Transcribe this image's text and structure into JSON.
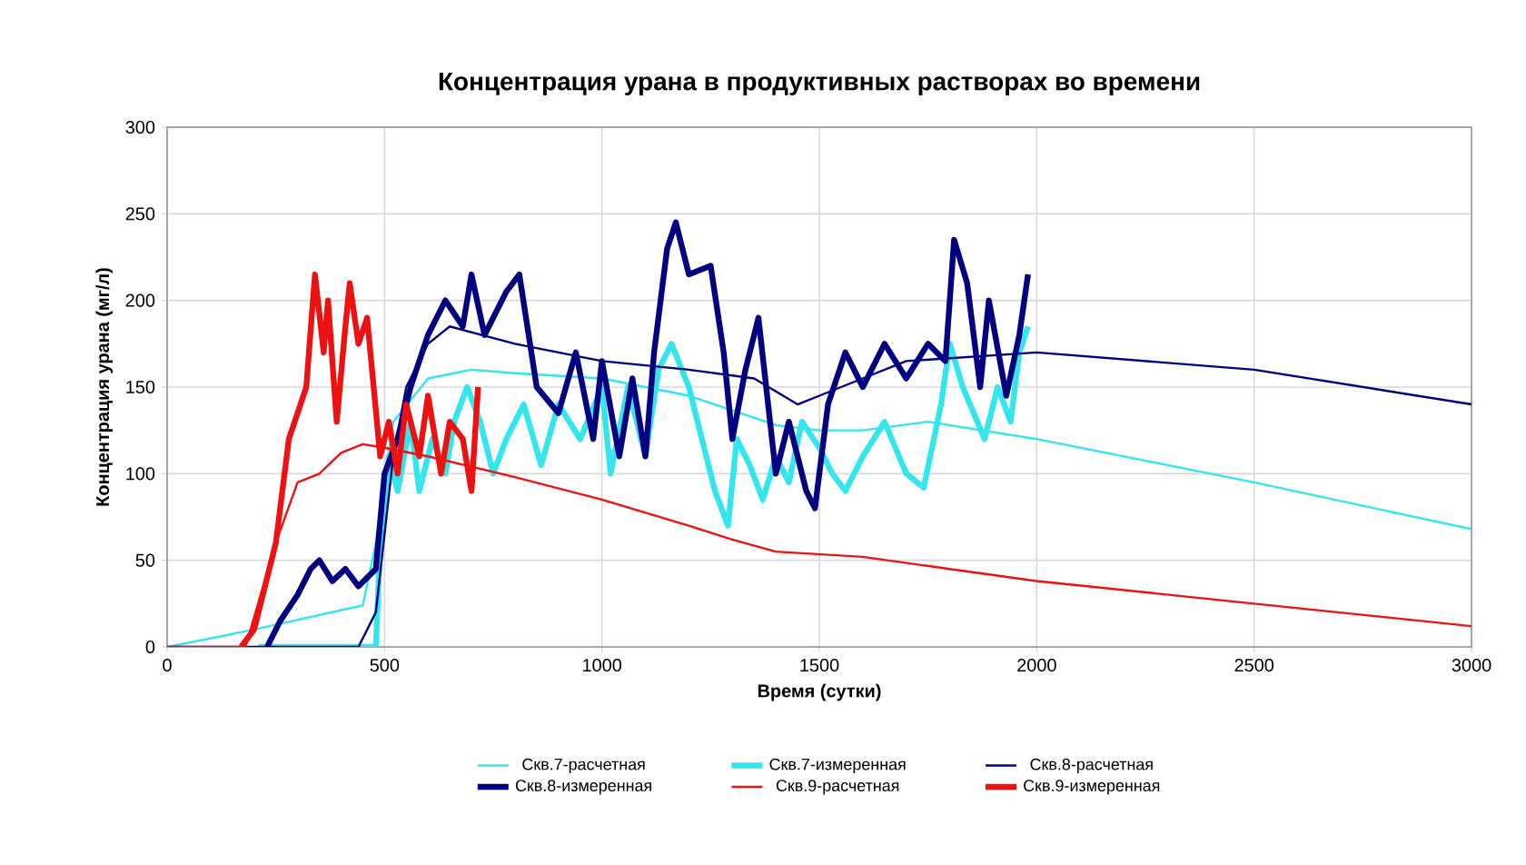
{
  "chart_data": {
    "type": "line",
    "title": "Концентрация урана в продуктивных растворах во времени",
    "xlabel": "Время (сутки)",
    "ylabel": "Концентрация урана (мг/л)",
    "xlim": [
      0,
      3000
    ],
    "ylim": [
      0,
      300
    ],
    "xticks": [
      0,
      500,
      1000,
      1500,
      2000,
      2500,
      3000
    ],
    "yticks": [
      0,
      50,
      100,
      150,
      200,
      250,
      300
    ],
    "grid": true,
    "legend": "bottom",
    "marker": "none",
    "line_style": "solid",
    "series": [
      {
        "name": "Скв.7-расчетная",
        "color": "#33e6ee",
        "x": [
          0,
          200,
          450,
          480,
          520,
          600,
          700,
          800,
          1000,
          1200,
          1400,
          1500,
          1600,
          1750,
          2000,
          2500,
          3000
        ],
        "values": [
          0,
          10,
          24,
          60,
          130,
          155,
          160,
          158,
          155,
          145,
          128,
          125,
          125,
          130,
          120,
          95,
          68
        ]
      },
      {
        "name": "Скв.7-измеренная",
        "color": "#33e6ee",
        "x": [
          210,
          480,
          490,
          510,
          530,
          560,
          580,
          610,
          640,
          660,
          690,
          720,
          750,
          780,
          820,
          860,
          900,
          950,
          1000,
          1020,
          1060,
          1100,
          1130,
          1160,
          1200,
          1230,
          1260,
          1290,
          1310,
          1340,
          1370,
          1400,
          1430,
          1460,
          1500,
          1530,
          1560,
          1600,
          1650,
          1700,
          1740,
          1780,
          1800,
          1830,
          1880,
          1910,
          1940,
          1960,
          1980
        ],
        "values": [
          0,
          0,
          60,
          110,
          90,
          130,
          90,
          120,
          100,
          130,
          150,
          130,
          100,
          120,
          140,
          105,
          140,
          120,
          150,
          100,
          150,
          110,
          160,
          175,
          150,
          120,
          90,
          70,
          120,
          105,
          85,
          110,
          95,
          130,
          115,
          100,
          90,
          110,
          130,
          100,
          92,
          140,
          175,
          150,
          120,
          150,
          130,
          170,
          185
        ]
      },
      {
        "name": "Скв.8-расчетная",
        "color": "#000080",
        "x": [
          0,
          440,
          480,
          520,
          550,
          600,
          650,
          800,
          1000,
          1200,
          1350,
          1450,
          1550,
          1700,
          2000,
          2500,
          3000
        ],
        "values": [
          0,
          0,
          20,
          110,
          150,
          175,
          185,
          175,
          165,
          160,
          155,
          140,
          150,
          165,
          170,
          160,
          140
        ]
      },
      {
        "name": "Скв.8-измеренная",
        "color": "#000080",
        "x": [
          230,
          260,
          300,
          330,
          350,
          380,
          410,
          440,
          480,
          500,
          530,
          560,
          600,
          640,
          680,
          700,
          730,
          780,
          810,
          850,
          900,
          940,
          980,
          1000,
          1040,
          1070,
          1100,
          1120,
          1150,
          1170,
          1200,
          1250,
          1280,
          1300,
          1330,
          1360,
          1400,
          1430,
          1470,
          1490,
          1520,
          1560,
          1600,
          1650,
          1700,
          1750,
          1790,
          1810,
          1840,
          1870,
          1890,
          1930,
          1960,
          1980
        ],
        "values": [
          0,
          15,
          30,
          45,
          50,
          38,
          45,
          35,
          45,
          100,
          120,
          150,
          180,
          200,
          185,
          215,
          180,
          205,
          215,
          150,
          135,
          170,
          120,
          165,
          110,
          155,
          110,
          170,
          230,
          245,
          215,
          220,
          170,
          120,
          160,
          190,
          100,
          130,
          90,
          80,
          140,
          170,
          150,
          175,
          155,
          175,
          165,
          235,
          210,
          150,
          200,
          145,
          180,
          215
        ]
      },
      {
        "name": "Скв.9-расчетная",
        "color": "#ee1111",
        "x": [
          0,
          180,
          250,
          300,
          350,
          400,
          450,
          500,
          600,
          800,
          1000,
          1200,
          1300,
          1400,
          1600,
          1800,
          2000,
          2500,
          3000
        ],
        "values": [
          0,
          0,
          60,
          95,
          100,
          112,
          117,
          115,
          110,
          98,
          85,
          70,
          62,
          55,
          52,
          45,
          38,
          25,
          12
        ]
      },
      {
        "name": "Скв.9-измеренная",
        "color": "#ee1111",
        "x": [
          170,
          200,
          250,
          280,
          320,
          340,
          360,
          370,
          390,
          410,
          420,
          440,
          460,
          490,
          510,
          530,
          550,
          580,
          600,
          630,
          650,
          680,
          700,
          715
        ],
        "values": [
          0,
          10,
          60,
          120,
          150,
          215,
          170,
          200,
          130,
          185,
          210,
          175,
          190,
          110,
          130,
          100,
          140,
          110,
          145,
          100,
          130,
          120,
          90,
          150
        ]
      }
    ]
  }
}
